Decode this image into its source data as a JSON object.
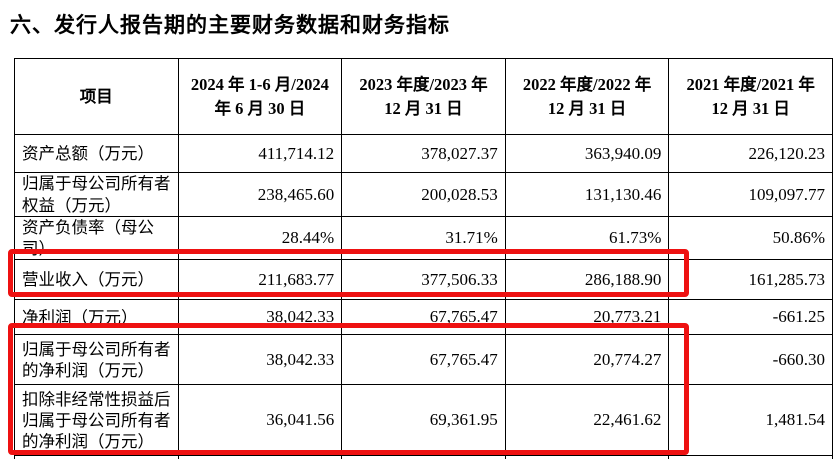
{
  "title": "六、发行人报告期的主要财务数据和财务指标",
  "table": {
    "columns": [
      "项目",
      "2024 年 1-6 月/2024 年 6 月 30 日",
      "2023 年度/2023 年 12 月 31 日",
      "2022 年度/2022 年 12 月 31 日",
      "2021 年度/2021 年 12 月 31 日"
    ],
    "rows": [
      {
        "label": "资产总额（万元）",
        "values": [
          "411,714.12",
          "378,027.37",
          "363,940.09",
          "226,120.23"
        ],
        "highlighted": false
      },
      {
        "label": "归属于母公司所有者权益（万元）",
        "values": [
          "238,465.60",
          "200,028.53",
          "131,130.46",
          "109,097.77"
        ],
        "highlighted": false
      },
      {
        "label": "资产负债率（母公司）",
        "values": [
          "28.44%",
          "31.71%",
          "61.73%",
          "50.86%"
        ],
        "highlighted": false
      },
      {
        "label": "营业收入（万元）",
        "values": [
          "211,683.77",
          "377,506.33",
          "286,188.90",
          "161,285.73"
        ],
        "highlighted": true
      },
      {
        "label": "净利润（万元）",
        "values": [
          "38,042.33",
          "67,765.47",
          "20,773.21",
          "-661.25"
        ],
        "highlighted": false
      },
      {
        "label": "归属于母公司所有者的净利润（万元）",
        "values": [
          "38,042.33",
          "67,765.47",
          "20,774.27",
          "-660.30"
        ],
        "highlighted": true
      },
      {
        "label": "扣除非经常性损益后归属于母公司所有者的净利润（万元）",
        "values": [
          "36,041.56",
          "69,361.95",
          "22,461.62",
          "1,481.54"
        ],
        "highlighted": true
      }
    ]
  },
  "annotations": {
    "highlight_color": "#ee1111",
    "boxes": [
      {
        "id": "hl-revenue",
        "covers": "营业收入（万元）行，2024年1-6月至2022年度三列"
      },
      {
        "id": "hl-netprofit",
        "covers": "归属于母公司所有者的净利润及扣非后净利润两行，2024年1-6月至2022年度三列"
      }
    ]
  }
}
